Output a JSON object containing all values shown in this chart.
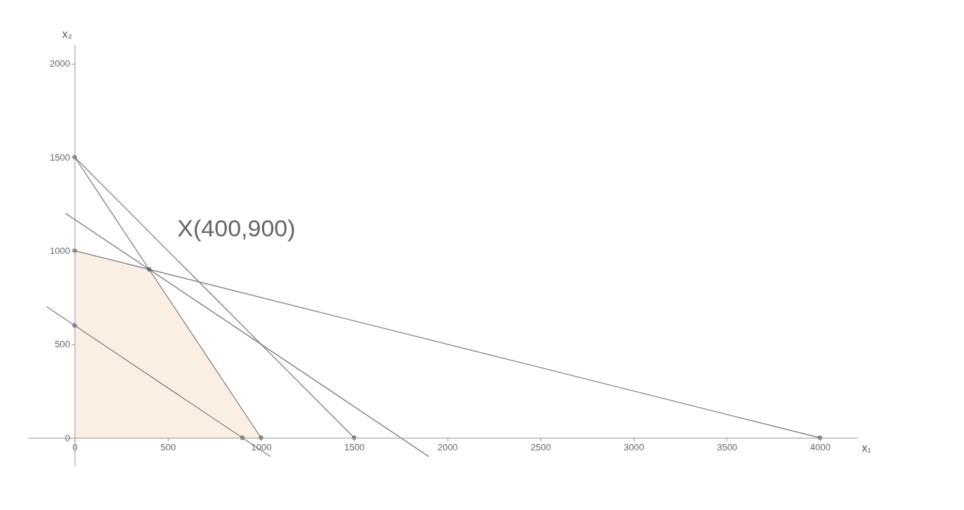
{
  "chart_data": {
    "type": "line",
    "xlabel": "x₁",
    "ylabel": "x₂",
    "xlim": [
      -250,
      4200
    ],
    "ylim": [
      -150,
      2100
    ],
    "xticks": [
      0,
      500,
      1000,
      1500,
      2000,
      2500,
      3000,
      3500,
      4000
    ],
    "yticks": [
      0,
      500,
      1000,
      1500,
      2000
    ],
    "line_style": "solid",
    "series": [
      {
        "type": "area",
        "color": "#fbefe4",
        "x": [
          0,
          400,
          1000
        ],
        "values": [
          1000,
          900,
          0
        ]
      },
      {
        "color": "#808080",
        "x": [
          0,
          1000
        ],
        "values": [
          1500,
          0
        ]
      },
      {
        "color": "#808080",
        "x": [
          0,
          1500
        ],
        "values": [
          1500,
          0
        ]
      },
      {
        "color": "#808080",
        "x": [
          0,
          4000
        ],
        "values": [
          1000,
          0
        ]
      },
      {
        "color": "#707070",
        "x": [
          -50,
          1900
        ],
        "values": [
          1200,
          -100
        ]
      },
      {
        "color": "#808080",
        "x": [
          -150,
          1050
        ],
        "values": [
          700,
          -100
        ]
      },
      {
        "type": "scatter",
        "marker": "circle",
        "color": "#555555",
        "x": [
          0,
          0,
          0,
          400,
          900,
          1000,
          1500,
          4000
        ],
        "values": [
          1500,
          1000,
          600,
          900,
          0,
          0,
          0,
          0
        ]
      }
    ],
    "annotations": [
      {
        "text": "X(400,900)",
        "x": 400,
        "y": 900
      }
    ]
  }
}
